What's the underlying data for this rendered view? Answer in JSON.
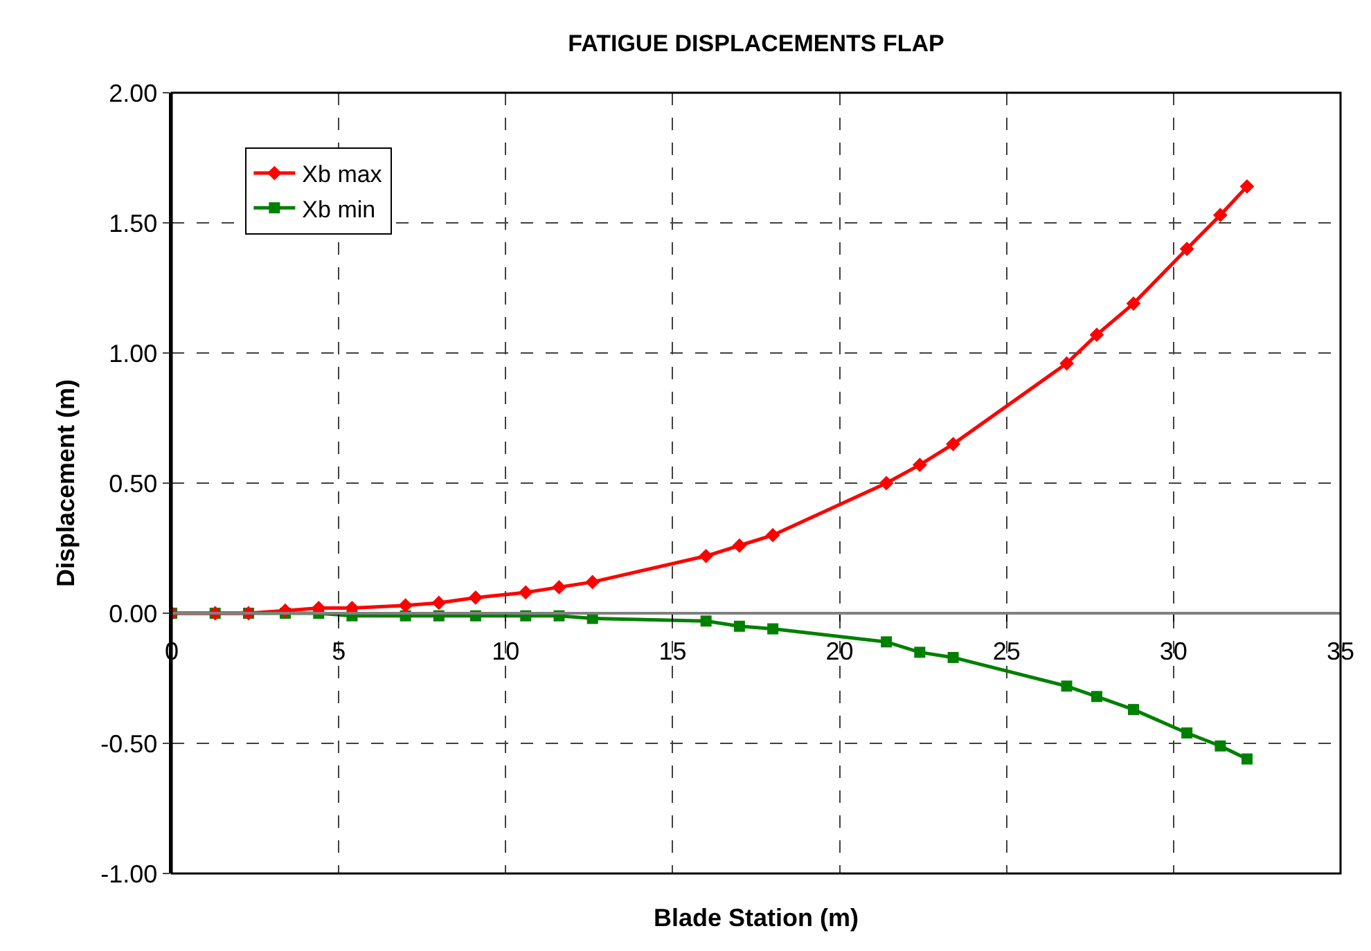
{
  "chart_data": {
    "type": "line",
    "title": "FATIGUE DISPLACEMENTS FLAP",
    "xlabel": "Blade Station (m)",
    "ylabel": "Displacement (m)",
    "x": [
      0,
      1.3,
      2.3,
      3.4,
      4.4,
      5.4,
      7.0,
      8.0,
      9.1,
      10.6,
      11.6,
      12.6,
      16.0,
      17.0,
      18.0,
      21.4,
      22.4,
      23.4,
      26.8,
      27.7,
      28.8,
      30.4,
      31.4,
      32.2
    ],
    "series": [
      {
        "name": "Xb max",
        "color": "#ff0000",
        "marker": "diamond",
        "values": [
          0,
          0.0,
          0.0,
          0.01,
          0.02,
          0.02,
          0.03,
          0.04,
          0.06,
          0.08,
          0.1,
          0.12,
          0.22,
          0.26,
          0.3,
          0.5,
          0.57,
          0.65,
          0.96,
          1.07,
          1.19,
          1.4,
          1.53,
          1.64
        ]
      },
      {
        "name": "Xb min",
        "color": "#008000",
        "marker": "square",
        "values": [
          0,
          0.0,
          0.0,
          0.0,
          0.0,
          -0.01,
          -0.01,
          -0.01,
          -0.01,
          -0.01,
          -0.01,
          -0.02,
          -0.03,
          -0.05,
          -0.06,
          -0.11,
          -0.15,
          -0.17,
          -0.28,
          -0.32,
          -0.37,
          -0.46,
          -0.51,
          -0.56
        ]
      }
    ],
    "xlim": [
      0,
      35
    ],
    "xticks": [
      0,
      5,
      10,
      15,
      20,
      25,
      30,
      35
    ],
    "ylim": [
      -1.0,
      2.0
    ],
    "yticks": [
      {
        "value": -1.0,
        "label": "-1.00"
      },
      {
        "value": -0.5,
        "label": "-0.50"
      },
      {
        "value": 0,
        "label": "0.00"
      },
      {
        "value": 0.5,
        "label": "0.50"
      },
      {
        "value": 1.0,
        "label": "1.00"
      },
      {
        "value": 1.5,
        "label": "1.50"
      },
      {
        "value": 2.0,
        "label": "2.00"
      }
    ],
    "grid": true,
    "legend": "top left",
    "line_style": "solid"
  }
}
